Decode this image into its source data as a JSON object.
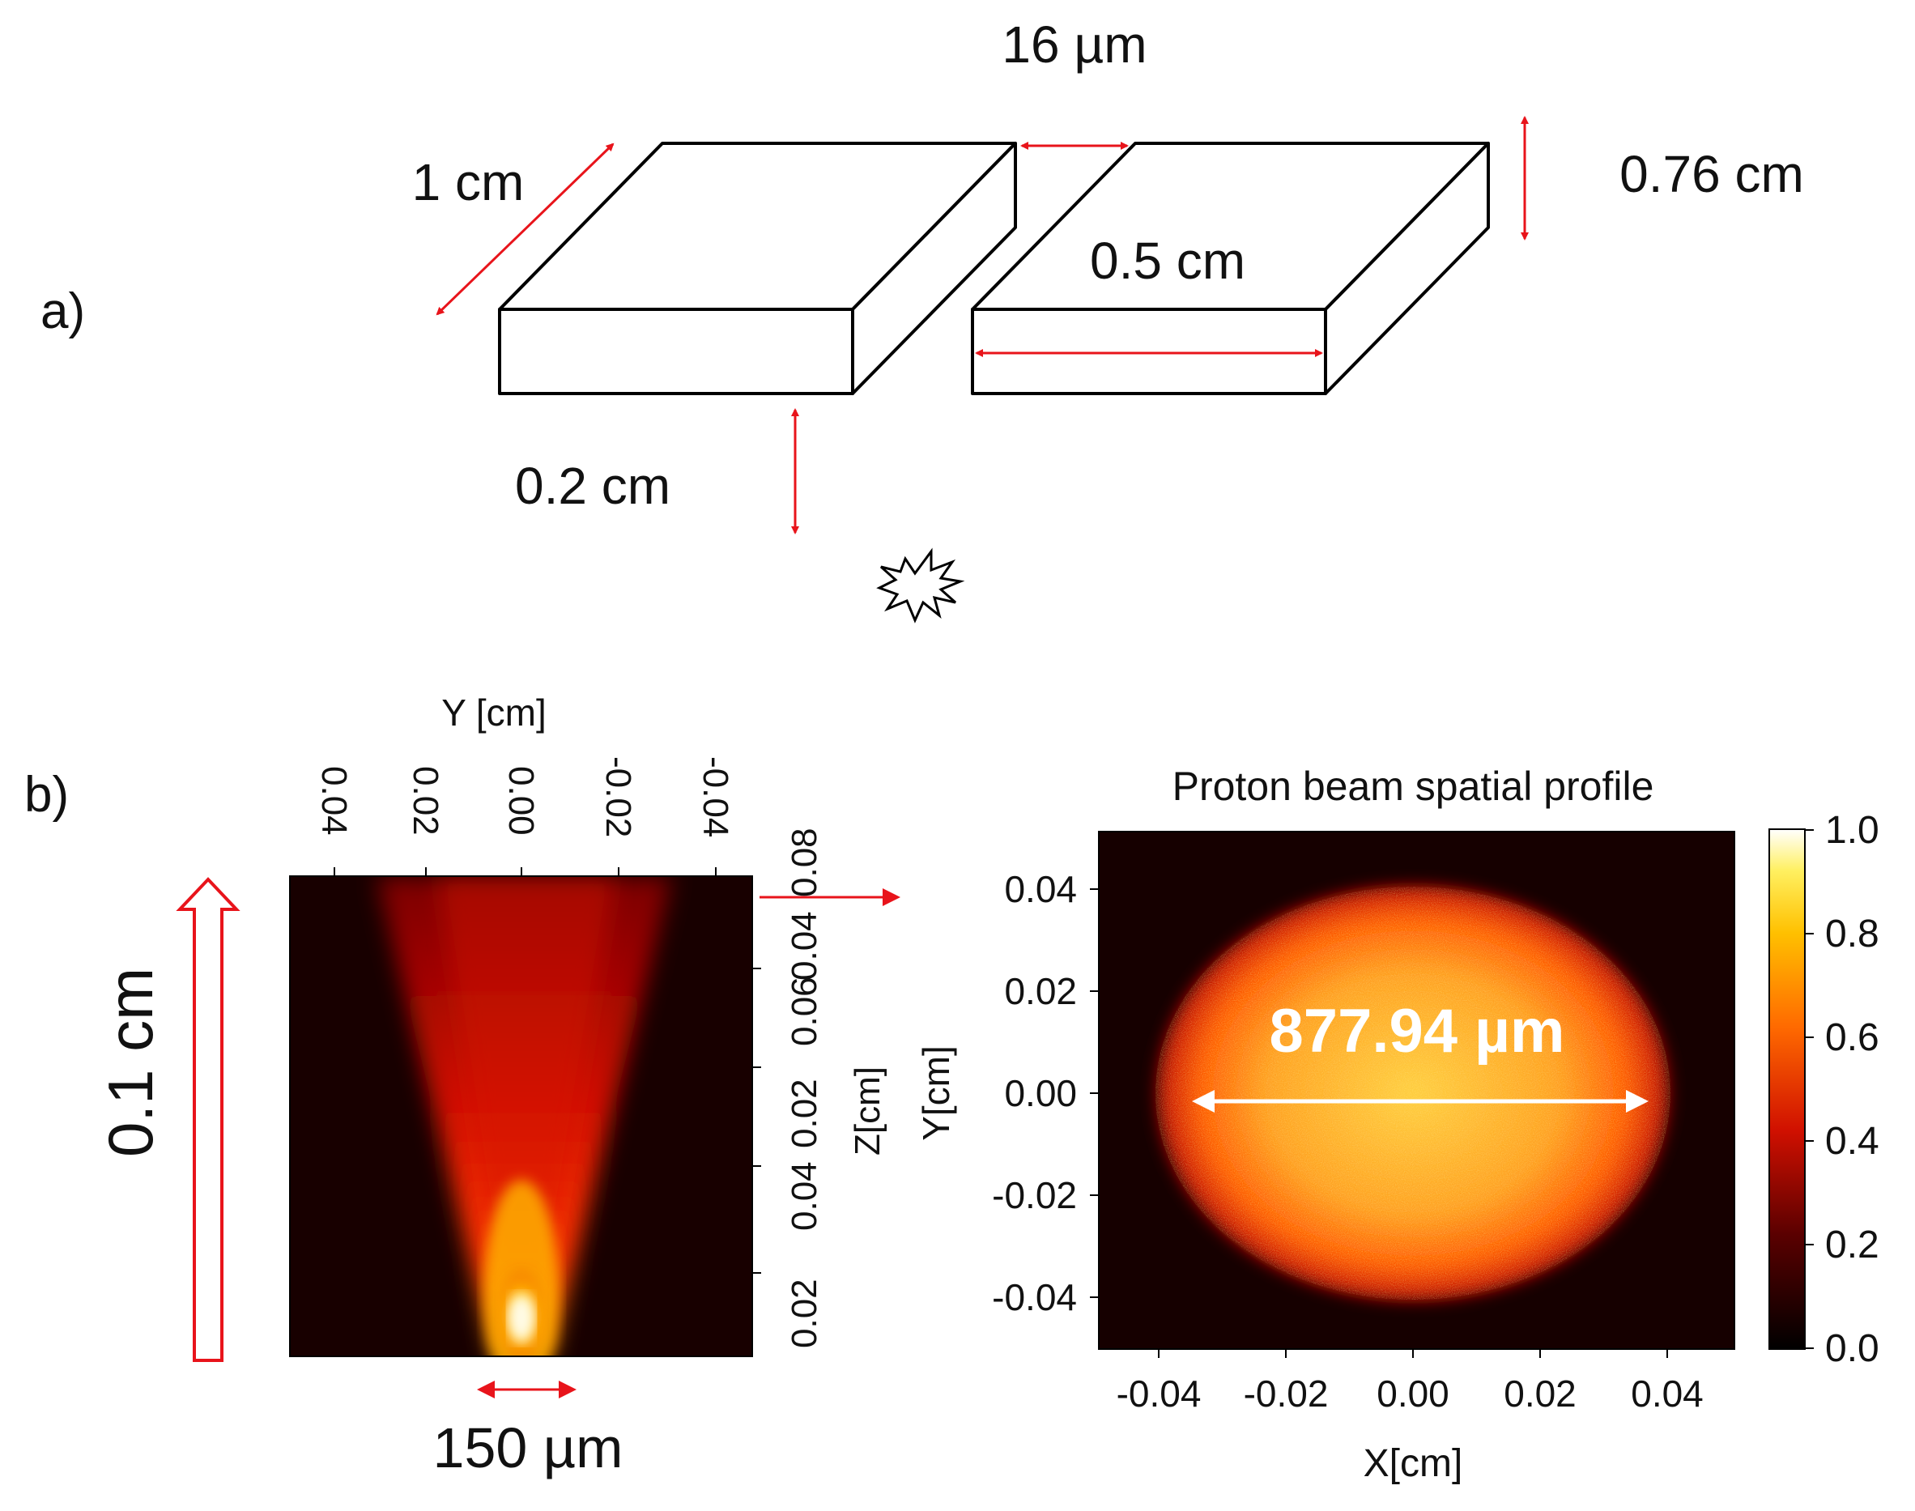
{
  "panel_a": {
    "label": "a)",
    "dims": {
      "gap": "16 µm",
      "depth": "1 cm",
      "width": "0.5 cm",
      "height": "0.76 cm",
      "distance": "0.2 cm"
    },
    "icons": [
      "slab-icon",
      "slab-icon",
      "explosion-icon"
    ]
  },
  "panel_b": {
    "label": "b)",
    "beam_length": "0.1 cm",
    "spot_size": "150 µm",
    "beam_plot": {
      "x_axis_label": "Y [cm]",
      "x_ticks": [
        "0.04",
        "0.02",
        "0.00",
        "-0.02",
        "-0.04"
      ],
      "y_axis_label": "Z[cm]",
      "y_ticks": [
        "0.02",
        "0.04",
        "0.06",
        "0.08"
      ]
    },
    "profile_plot": {
      "title": "Proton beam spatial profile",
      "annotation": "877.94 µm",
      "x_axis_label": "X[cm]",
      "x_ticks": [
        "-0.04",
        "-0.02",
        "0.00",
        "0.02",
        "0.04"
      ],
      "y_axis_label": "Y[cm]",
      "y_ticks": [
        "0.04",
        "0.02",
        "0.00",
        "-0.02",
        "-0.04"
      ],
      "colorbar_ticks": [
        "1.0",
        "0.8",
        "0.6",
        "0.4",
        "0.2",
        "0.0"
      ]
    }
  },
  "colors": {
    "arrow": "#e8141b",
    "outline": "#000000",
    "text": "#111111"
  }
}
